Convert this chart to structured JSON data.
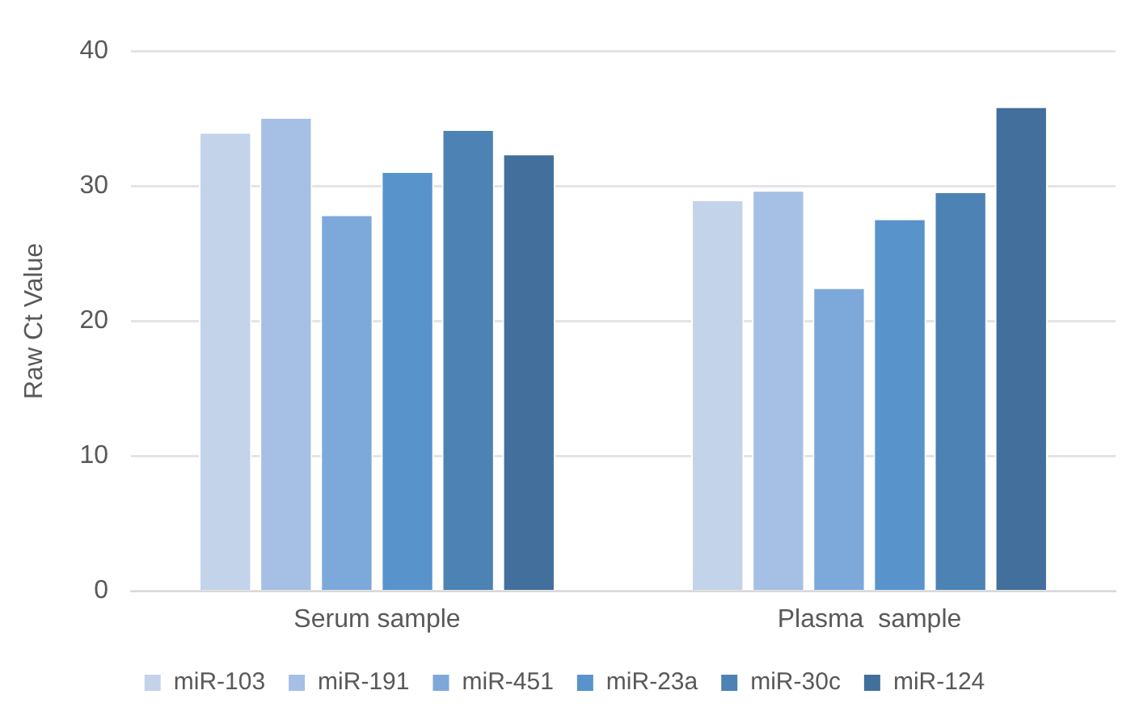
{
  "chart_data": {
    "type": "bar",
    "ylabel": "Raw Ct Value",
    "categories": [
      "Serum sample",
      "Plasma  sample"
    ],
    "series": [
      {
        "name": "miR-103",
        "color": "#c3d3ea",
        "values": [
          34.0,
          29.0
        ]
      },
      {
        "name": "miR-191",
        "color": "#a5c0e4",
        "values": [
          35.1,
          29.7
        ]
      },
      {
        "name": "miR-451",
        "color": "#7da9da",
        "values": [
          27.9,
          22.5
        ]
      },
      {
        "name": "miR-23a",
        "color": "#5893cb",
        "values": [
          31.1,
          27.6
        ]
      },
      {
        "name": "miR-30c",
        "color": "#4d82b4",
        "values": [
          34.2,
          29.6
        ]
      },
      {
        "name": "miR-124",
        "color": "#426f9c",
        "values": [
          32.4,
          35.9
        ]
      }
    ],
    "ylim": [
      0,
      40
    ],
    "yticks": [
      0,
      10,
      20,
      30,
      40
    ],
    "grid": "y",
    "legend": "bottom"
  }
}
